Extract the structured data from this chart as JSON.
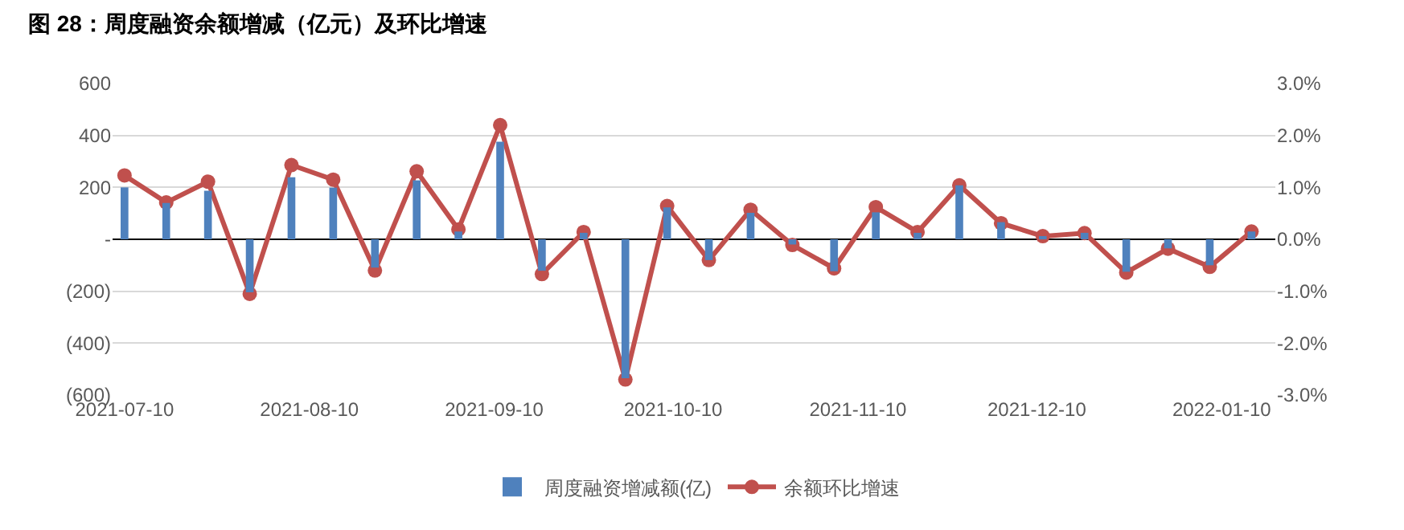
{
  "chart_data": {
    "type": "bar",
    "title": "图 28：周度融资余额增减（亿元）及环比增速",
    "x": [
      "2021-07-10",
      "2021-07-17",
      "2021-07-24",
      "2021-07-31",
      "2021-08-07",
      "2021-08-14",
      "2021-08-21",
      "2021-08-28",
      "2021-09-04",
      "2021-09-11",
      "2021-09-18",
      "2021-09-25",
      "2021-10-02",
      "2021-10-09",
      "2021-10-16",
      "2021-10-23",
      "2021-10-30",
      "2021-11-06",
      "2021-11-13",
      "2021-11-20",
      "2021-11-27",
      "2021-12-04",
      "2021-12-11",
      "2021-12-18",
      "2021-12-25",
      "2022-01-01",
      "2022-01-08",
      "2022-01-15"
    ],
    "series": [
      {
        "name": "周度融资增减额(亿)",
        "color": "#4f81bd",
        "values": [
          200,
          140,
          187,
          -204,
          239,
          199,
          -109,
          227,
          30,
          376,
          -121,
          25,
          -535,
          123,
          -80,
          102,
          -20,
          -123,
          104,
          25,
          208,
          66,
          12,
          25,
          -125,
          -35,
          -100,
          30
        ]
      },
      {
        "name": "余额环比增速",
        "type": "line",
        "axis": "y2",
        "color": "#c0504d",
        "values": [
          1.23,
          0.71,
          1.11,
          -1.05,
          1.43,
          1.15,
          -0.6,
          1.31,
          0.19,
          2.2,
          -0.67,
          0.14,
          -2.7,
          0.64,
          -0.4,
          0.57,
          -0.11,
          -0.56,
          0.62,
          0.14,
          1.04,
          0.31,
          0.06,
          0.12,
          -0.64,
          -0.18,
          -0.53,
          0.15
        ]
      }
    ],
    "marker": "circle",
    "xlim": [
      "2021-07-08",
      "2022-01-19"
    ],
    "xticks": [
      {
        "value": "2021-07-10",
        "label": "2021-07-10"
      },
      {
        "value": "2021-08-10",
        "label": "2021-08-10"
      },
      {
        "value": "2021-09-10",
        "label": "2021-09-10"
      },
      {
        "value": "2021-10-10",
        "label": "2021-10-10"
      },
      {
        "value": "2021-11-10",
        "label": "2021-11-10"
      },
      {
        "value": "2021-12-10",
        "label": "2021-12-10"
      },
      {
        "value": "2022-01-10",
        "label": "2022-01-10"
      }
    ],
    "ylim": [
      -600,
      600
    ],
    "yticks": [
      {
        "value": -600,
        "label": "(600)"
      },
      {
        "value": -400,
        "label": "(400)"
      },
      {
        "value": -200,
        "label": "(200)"
      },
      {
        "value": 0,
        "label": "-"
      },
      200,
      400,
      600
    ],
    "y2lim": [
      -3,
      3
    ],
    "y2ticks": [
      {
        "value": -3,
        "label": "-3.0%"
      },
      {
        "value": -2,
        "label": "-2.0%"
      },
      {
        "value": -1,
        "label": "-1.0%"
      },
      {
        "value": 0,
        "label": "0.0%"
      },
      {
        "value": 1,
        "label": "1.0%"
      },
      {
        "value": 2,
        "label": "2.0%"
      },
      {
        "value": 3,
        "label": "3.0%"
      }
    ],
    "grid": "y",
    "legend": "bottom"
  }
}
